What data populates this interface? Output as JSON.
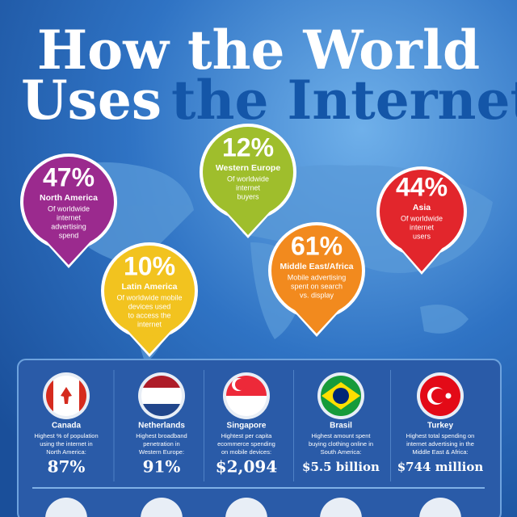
{
  "title": {
    "line1": "How the World",
    "line2_a": "Uses",
    "line2_b": "the Internet"
  },
  "pins": [
    {
      "pct": "47%",
      "region": "North America",
      "desc": [
        "Of worldwide",
        "internet",
        "advertising",
        "spend"
      ],
      "color": "#9b2a8e"
    },
    {
      "pct": "12%",
      "region": "Western Europe",
      "desc": [
        "Of worldwide",
        "internet",
        "buyers"
      ],
      "color": "#9fbe2c"
    },
    {
      "pct": "44%",
      "region": "Asia",
      "desc": [
        "Of worldwide",
        "internet",
        "users"
      ],
      "color": "#e2262c"
    },
    {
      "pct": "10%",
      "region": "Latin America",
      "desc": [
        "Of worldwide mobile",
        "devices used",
        "to access the",
        "internet"
      ],
      "color": "#f2c31f"
    },
    {
      "pct": "61%",
      "region": "Middle East/Africa",
      "desc": [
        "Mobile advertising",
        "spent on search",
        "vs. display"
      ],
      "color": "#f28a1e"
    }
  ],
  "countries": [
    {
      "name": "Canada",
      "desc": [
        "Highest % of population",
        "using the internet in",
        "North America:"
      ],
      "value": "87%"
    },
    {
      "name": "Netherlands",
      "desc": [
        "Highest broadband",
        "penetration in",
        "Western Europe:"
      ],
      "value": "91%"
    },
    {
      "name": "Singapore",
      "desc": [
        "Hightest  per capita",
        "ecommerce spending",
        "on mobile devices:"
      ],
      "value": "$2,094"
    },
    {
      "name": "Brasil",
      "desc": [
        "Highest amount spent",
        "buying clothing online in",
        "South America:"
      ],
      "value": "$5.5 billion"
    },
    {
      "name": "Turkey",
      "desc": [
        "Highest total spending on",
        "internet advertising in the",
        "Middle East & Africa:"
      ],
      "value": "$744 million"
    }
  ]
}
